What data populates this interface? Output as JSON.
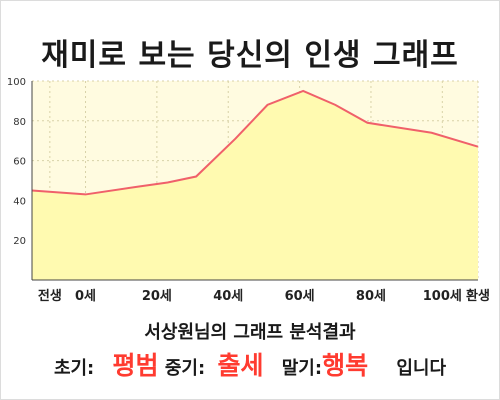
{
  "title": "재미로 보는 당신의 인생 그래프",
  "summary": "서상원님의 그래프 분석결과",
  "result": {
    "early_label": "초기:",
    "early_value": "평범",
    "mid_label": "중기:",
    "mid_value": "출세",
    "late_label": "말기:",
    "late_value": "행복",
    "suffix": "입니다"
  },
  "colors": {
    "plot_background": "#fffbe0",
    "area_fill": "#fffab0",
    "line": "#f0606a",
    "value_highlight": "#ff3b30"
  },
  "chart_data": {
    "type": "area",
    "title": "",
    "xlabel": "",
    "ylabel": "",
    "grid": true,
    "ylim": [
      0,
      100
    ],
    "y_ticks": [
      20,
      40,
      60,
      80,
      100
    ],
    "x_ticks": [
      {
        "label": "전생",
        "x": -10
      },
      {
        "label": "0세",
        "x": 0
      },
      {
        "label": "20세",
        "x": 20
      },
      {
        "label": "40세",
        "x": 40
      },
      {
        "label": "60세",
        "x": 60
      },
      {
        "label": "80세",
        "x": 80
      },
      {
        "label": "100세",
        "x": 100
      },
      {
        "label": "환생",
        "x": 110
      }
    ],
    "xlim": [
      -15,
      110
    ],
    "series": [
      {
        "x": [
          -15,
          0,
          15,
          23,
          31,
          42,
          51,
          61,
          70,
          79,
          97,
          110
        ],
        "y": [
          45,
          43,
          47,
          49,
          52,
          71,
          88,
          95,
          88,
          79,
          74,
          67
        ]
      }
    ]
  }
}
